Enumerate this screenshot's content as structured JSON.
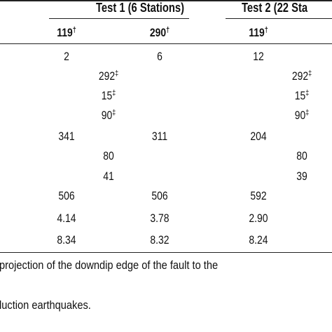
{
  "header": {
    "test1": "Test 1 (6 Stations)",
    "test2": "Test 2 (22 Sta"
  },
  "subheader": [
    {
      "value": "119",
      "mark": "†"
    },
    {
      "value": "290",
      "mark": "†"
    },
    {
      "value": "119",
      "mark": "†"
    }
  ],
  "rows": [
    {
      "c1": "2",
      "c2": "6",
      "c3": "12"
    },
    {
      "c1b": "292",
      "c1b_mark": "‡",
      "c3b": "292",
      "c3b_mark": "‡"
    },
    {
      "c1b": "15",
      "c1b_mark": "‡",
      "c3b": "15",
      "c3b_mark": "‡"
    },
    {
      "c1b": "90",
      "c1b_mark": "‡",
      "c3b": "90",
      "c3b_mark": "‡"
    },
    {
      "c1": "341",
      "c2": "311",
      "c3": "204"
    },
    {
      "c1b": "80",
      "c3b": "80"
    },
    {
      "c1b": "41",
      "c3b": "39"
    },
    {
      "c1": "506",
      "c2": "506",
      "c3": "592"
    },
    {
      "c1": "4.14",
      "c2": "3.78",
      "c3": "2.90"
    },
    {
      "c1": "8.34",
      "c2": "8.32",
      "c3": "8.24"
    }
  ],
  "notes": [
    "projection of the downdip edge of the fault to the",
    "luction earthquakes."
  ]
}
